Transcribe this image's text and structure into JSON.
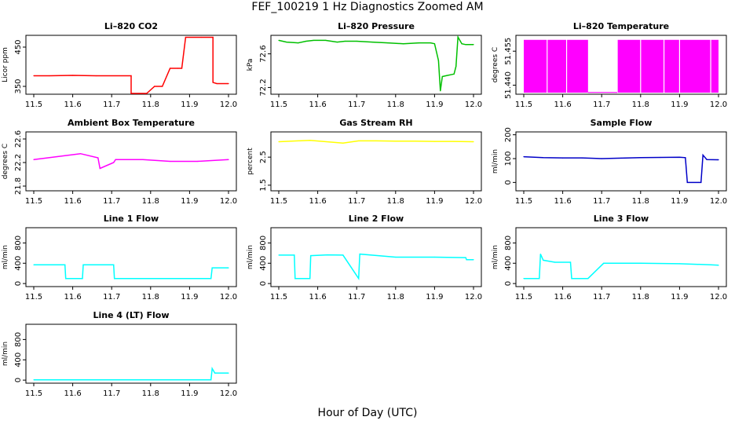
{
  "title": "FEF_100219  1 Hz Diagnostics Zoomed AM",
  "xlabel": "Hour of Day (UTC)",
  "x_ticks": [
    "11.5",
    "11.6",
    "11.7",
    "11.8",
    "11.9",
    "12.0"
  ],
  "chart_data": [
    {
      "type": "line",
      "title": "Li–820 CO2",
      "ylabel": "Licor ppm",
      "color": "#ff0000",
      "xlim": [
        11.5,
        12.0
      ],
      "ylim": [
        330,
        480
      ],
      "yticks": [
        "350",
        "450"
      ],
      "ytick_values": [
        350,
        450
      ],
      "x": [
        11.5,
        11.54,
        11.6,
        11.66,
        11.75,
        11.75,
        11.77,
        11.79,
        11.81,
        11.81,
        11.83,
        11.85,
        11.87,
        11.88,
        11.89,
        11.93,
        11.96,
        11.96,
        11.97,
        12.0
      ],
      "y": [
        377,
        377,
        378,
        377,
        377,
        332,
        332,
        332,
        350,
        350,
        350,
        396,
        396,
        396,
        475,
        475,
        475,
        360,
        357,
        357
      ]
    },
    {
      "type": "line",
      "title": "Li–820 Pressure",
      "ylabel": "kPa",
      "color": "#00c000",
      "xlim": [
        11.5,
        12.0
      ],
      "ylim": [
        72.12,
        72.82
      ],
      "yticks": [
        "72.2",
        "72.6"
      ],
      "ytick_values": [
        72.2,
        72.6
      ],
      "x": [
        11.5,
        11.52,
        11.55,
        11.57,
        11.59,
        11.62,
        11.65,
        11.67,
        11.7,
        11.74,
        11.78,
        11.82,
        11.86,
        11.89,
        11.9,
        11.91,
        11.915,
        11.92,
        11.93,
        11.95,
        11.955,
        11.96,
        11.97,
        11.98,
        12.0
      ],
      "y": [
        72.76,
        72.74,
        72.73,
        72.75,
        72.76,
        72.76,
        72.74,
        72.75,
        72.75,
        72.74,
        72.73,
        72.72,
        72.73,
        72.73,
        72.72,
        72.52,
        72.16,
        72.33,
        72.34,
        72.36,
        72.45,
        72.8,
        72.72,
        72.71,
        72.71
      ]
    },
    {
      "type": "area",
      "title": "Li–820 Temperature",
      "ylabel": "degrees C",
      "color": "#ff00ff",
      "xlim": [
        11.5,
        12.0
      ],
      "ylim": [
        51.436,
        51.462
      ],
      "yticks": [
        "51.440",
        "51.455"
      ],
      "ytick_values": [
        51.44,
        51.455
      ],
      "x": [
        11.5,
        11.555,
        11.555,
        11.665,
        11.665,
        11.74,
        11.74,
        12.0
      ],
      "y": [
        51.46,
        51.46,
        51.46,
        51.46,
        51.4368,
        51.4368,
        51.46,
        51.46
      ]
    },
    {
      "type": "line",
      "title": "Ambient Box Temperature",
      "ylabel": "degrees C",
      "color": "#ff00ff",
      "xlim": [
        11.5,
        12.0
      ],
      "ylim": [
        21.72,
        22.72
      ],
      "yticks": [
        "21.8",
        "22.2",
        "22.6"
      ],
      "ytick_values": [
        21.8,
        22.2,
        22.6
      ],
      "x": [
        11.5,
        11.56,
        11.62,
        11.665,
        11.67,
        11.705,
        11.71,
        11.78,
        11.85,
        11.92,
        12.0
      ],
      "y": [
        22.25,
        22.3,
        22.35,
        22.28,
        22.1,
        22.2,
        22.25,
        22.25,
        22.22,
        22.22,
        22.25
      ]
    },
    {
      "type": "line",
      "title": "Gas Stream RH",
      "ylabel": "percent",
      "color": "#ffff00",
      "xlim": [
        11.5,
        12.0
      ],
      "ylim": [
        1.3,
        3.4
      ],
      "yticks": [
        "1.5",
        "2.5"
      ],
      "ytick_values": [
        1.5,
        2.5
      ],
      "x": [
        11.5,
        11.58,
        11.665,
        11.705,
        11.75,
        11.8,
        11.85,
        11.9,
        11.95,
        12.0
      ],
      "y": [
        3.05,
        3.1,
        3.0,
        3.08,
        3.08,
        3.07,
        3.07,
        3.06,
        3.06,
        3.05
      ]
    },
    {
      "type": "line",
      "title": "Sample Flow",
      "ylabel": "ml/min",
      "color": "#0000c8",
      "xlim": [
        11.5,
        12.0
      ],
      "ylim": [
        -35,
        212
      ],
      "yticks": [
        "0",
        "100",
        "200"
      ],
      "ytick_values": [
        0,
        100,
        200
      ],
      "x": [
        11.5,
        11.55,
        11.6,
        11.65,
        11.7,
        11.75,
        11.8,
        11.85,
        11.9,
        11.915,
        11.92,
        11.95,
        11.955,
        11.96,
        11.97,
        12.0
      ],
      "y": [
        108,
        104,
        103,
        103,
        100,
        102,
        104,
        105,
        106,
        104,
        0,
        0,
        0,
        115,
        96,
        95
      ]
    },
    {
      "type": "line",
      "title": "Line 1 Flow",
      "ylabel": "ml/min",
      "color": "#00ffff",
      "xlim": [
        11.5,
        12.0
      ],
      "ylim": [
        -60,
        1100
      ],
      "yticks": [
        "0",
        "400",
        "800"
      ],
      "ytick_values": [
        0,
        400,
        800
      ],
      "x": [
        11.5,
        11.58,
        11.582,
        11.625,
        11.627,
        11.705,
        11.707,
        11.8,
        11.9,
        11.955,
        11.958,
        12.0
      ],
      "y": [
        370,
        370,
        100,
        100,
        370,
        370,
        100,
        100,
        100,
        100,
        310,
        310
      ]
    },
    {
      "type": "line",
      "title": "Line 2 Flow",
      "ylabel": "ml/min",
      "color": "#00ffff",
      "xlim": [
        11.5,
        12.0
      ],
      "ylim": [
        -60,
        1100
      ],
      "yticks": [
        "0",
        "400",
        "800"
      ],
      "ytick_values": [
        0,
        400,
        800
      ],
      "x": [
        11.5,
        11.54,
        11.542,
        11.58,
        11.582,
        11.625,
        11.665,
        11.705,
        11.708,
        11.8,
        11.9,
        11.98,
        11.982,
        12.0
      ],
      "y": [
        560,
        560,
        100,
        100,
        550,
        565,
        560,
        100,
        580,
        520,
        520,
        510,
        470,
        470
      ]
    },
    {
      "type": "line",
      "title": "Line 3 Flow",
      "ylabel": "ml/min",
      "color": "#00ffff",
      "xlim": [
        11.5,
        12.0
      ],
      "ylim": [
        -60,
        1100
      ],
      "yticks": [
        "0",
        "400",
        "800"
      ],
      "ytick_values": [
        0,
        400,
        800
      ],
      "x": [
        11.5,
        11.54,
        11.543,
        11.55,
        11.58,
        11.62,
        11.623,
        11.665,
        11.705,
        11.8,
        11.9,
        11.98,
        12.0
      ],
      "y": [
        100,
        100,
        580,
        460,
        420,
        420,
        100,
        100,
        400,
        400,
        390,
        370,
        360
      ]
    },
    {
      "type": "line",
      "title": "Line 4 (LT) Flow",
      "ylabel": "ml/min",
      "color": "#00ffff",
      "xlim": [
        11.5,
        12.0
      ],
      "ylim": [
        -60,
        1100
      ],
      "yticks": [
        "0",
        "400",
        "800"
      ],
      "ytick_values": [
        0,
        400,
        800
      ],
      "x": [
        11.5,
        11.6,
        11.7,
        11.8,
        11.9,
        11.955,
        11.958,
        11.965,
        12.0
      ],
      "y": [
        5,
        5,
        5,
        5,
        5,
        5,
        230,
        140,
        140
      ]
    }
  ]
}
